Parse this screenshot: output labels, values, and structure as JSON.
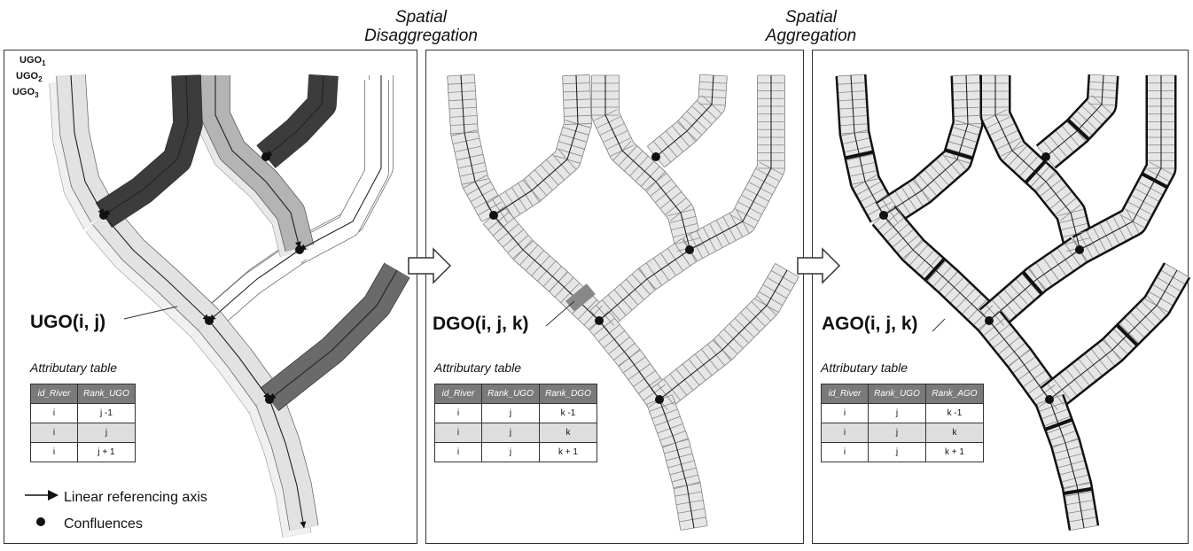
{
  "titles": {
    "disaggregation": [
      "Spatial",
      "Disaggregation"
    ],
    "aggregation": [
      "Spatial",
      "Aggregation"
    ]
  },
  "ugo_tags": [
    {
      "base": "UGO",
      "sub": "1"
    },
    {
      "base": "UGO",
      "sub": "2"
    },
    {
      "base": "UGO",
      "sub": "3"
    }
  ],
  "panels": {
    "ugo": {
      "label": "UGO(i, j)",
      "table_title": "Attributary table",
      "columns": [
        "id_River",
        "Rank_UGO"
      ],
      "rows": [
        [
          "i",
          "j -1"
        ],
        [
          "i",
          "j"
        ],
        [
          "i",
          "j + 1"
        ]
      ]
    },
    "dgo": {
      "label": "DGO(i, j, k)",
      "table_title": "Attributary table",
      "columns": [
        "id_River",
        "Rank_UGO",
        "Rank_DGO"
      ],
      "rows": [
        [
          "i",
          "j",
          "k -1"
        ],
        [
          "i",
          "j",
          "k"
        ],
        [
          "i",
          "j",
          "k + 1"
        ]
      ]
    },
    "ago": {
      "label": "AGO(i, j, k)",
      "table_title": "Attributary table",
      "columns": [
        "id_River",
        "Rank_UGO",
        "Rank_AGO"
      ],
      "rows": [
        [
          "i",
          "j",
          "k -1"
        ],
        [
          "i",
          "j",
          "k"
        ],
        [
          "i",
          "j",
          "k + 1"
        ]
      ]
    }
  },
  "legend": {
    "axis": "Linear referencing axis",
    "confluences": "Confluences"
  },
  "colors": {
    "panel_border": "#333333",
    "river_light": "#e2e2e2",
    "river_dark": "#3c3c3c",
    "river_mid": "#6a6a6a",
    "river_medium": "#b4b4b4",
    "table_header": "#7a7a7a",
    "table_shade": "#dedede"
  }
}
